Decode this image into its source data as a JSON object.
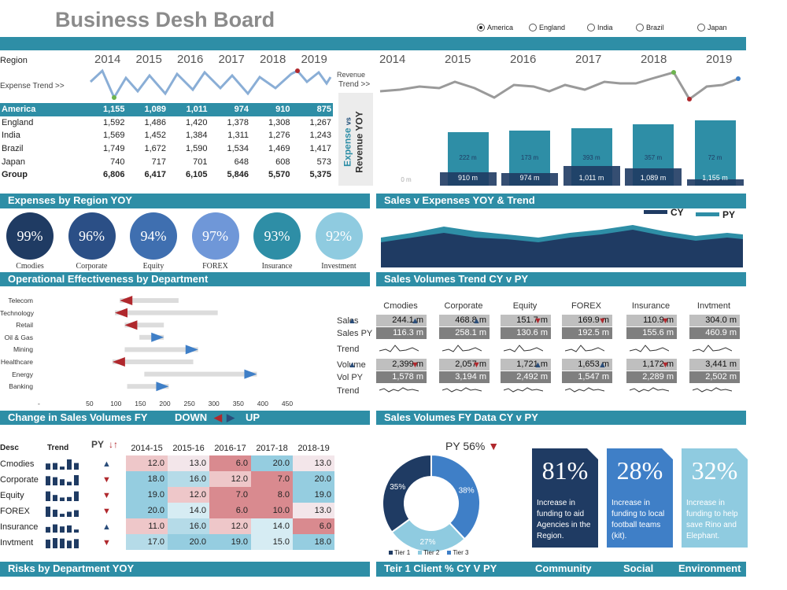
{
  "header": {
    "title": "Business Desh Board",
    "regions": [
      {
        "label": "America",
        "selected": true
      },
      {
        "label": "England",
        "selected": false
      },
      {
        "label": "India",
        "selected": false
      },
      {
        "label": "Brazil",
        "selected": false
      },
      {
        "label": "Japan",
        "selected": false
      }
    ]
  },
  "region_table": {
    "region_label": "Region",
    "trend_label": "Expense Trend >>",
    "years": [
      "2014",
      "2015",
      "2016",
      "2017",
      "2018",
      "2019"
    ],
    "rows": [
      {
        "name": "America",
        "values": [
          "1,155",
          "1,089",
          "1,011",
          "974",
          "910",
          "875"
        ]
      },
      {
        "name": "England",
        "values": [
          "1,592",
          "1,486",
          "1,420",
          "1,378",
          "1,308",
          "1,267"
        ]
      },
      {
        "name": "India",
        "values": [
          "1,569",
          "1,452",
          "1,384",
          "1,311",
          "1,276",
          "1,243"
        ]
      },
      {
        "name": "Brazil",
        "values": [
          "1,749",
          "1,672",
          "1,590",
          "1,534",
          "1,469",
          "1,417"
        ]
      },
      {
        "name": "Japan",
        "values": [
          "740",
          "717",
          "701",
          "648",
          "608",
          "573"
        ]
      },
      {
        "name": "Group",
        "values": [
          "6,806",
          "6,417",
          "6,105",
          "5,846",
          "5,570",
          "5,375"
        ]
      }
    ]
  },
  "revenue": {
    "label_line1": "Revenue",
    "label_line2": "Trend >>",
    "years": [
      "2014",
      "2015",
      "2016",
      "2017",
      "2018",
      "2019"
    ],
    "side_label_1": "Expense",
    "side_label_2": "vs",
    "side_label_3": "Revenue YOY",
    "bars": [
      {
        "top_label": "0 m",
        "bottom_label": "",
        "rev": 0,
        "exp": 0
      },
      {
        "top_label": "222 m",
        "bottom_label": "910 m",
        "rev": 68,
        "exp": 17
      },
      {
        "top_label": "173 m",
        "bottom_label": "974 m",
        "rev": 70,
        "exp": 16
      },
      {
        "top_label": "393 m",
        "bottom_label": "1,011 m",
        "rev": 73,
        "exp": 25
      },
      {
        "top_label": "357 m",
        "bottom_label": "1,089 m",
        "rev": 78,
        "exp": 22
      },
      {
        "top_label": "72 m",
        "bottom_label": "1,155 m",
        "rev": 83,
        "exp": 8
      }
    ]
  },
  "sections": {
    "expenses_region": "Expenses by Region YOY",
    "sales_expenses": "Sales v Expenses YOY & Trend",
    "operational": "Operational Effectiveness by Department",
    "sales_volumes_trend": "Sales Volumes Trend CY v PY",
    "change_sales": "Change in Sales Volumes FY",
    "down": "DOWN",
    "up": "UP",
    "sales_fy": "Sales Volumes FY Data CY v PY",
    "risks": "Risks by Department YOY",
    "tier1": "Teir 1 Client % CY V PY",
    "community": "Community",
    "social": "Social",
    "environment": "Environment"
  },
  "circles": [
    {
      "pct": "99%",
      "label": "Cmodies",
      "color": "#1f3b63"
    },
    {
      "pct": "96%",
      "label": "Corporate",
      "color": "#2b4f86"
    },
    {
      "pct": "94%",
      "label": "Equity",
      "color": "#3f6fb0"
    },
    {
      "pct": "97%",
      "label": "FOREX",
      "color": "#6f97d8"
    },
    {
      "pct": "93%",
      "label": "Insurance",
      "color": "#2e8ea6"
    },
    {
      "pct": "92%",
      "label": "Investment",
      "color": "#8fcbe0"
    }
  ],
  "legend": {
    "cy": "CY",
    "py": "PY"
  },
  "departments": {
    "items": [
      {
        "name": "Telecom",
        "start": 220,
        "end": 100,
        "dir": "left"
      },
      {
        "name": "Technology",
        "start": 300,
        "end": 90,
        "dir": "left"
      },
      {
        "name": "Retail",
        "start": 190,
        "end": 110,
        "dir": "left"
      },
      {
        "name": "Oil & Gas",
        "start": 140,
        "end": 190,
        "dir": "right"
      },
      {
        "name": "Mining",
        "start": 110,
        "end": 260,
        "dir": "right"
      },
      {
        "name": "Healthcare",
        "start": 250,
        "end": 85,
        "dir": "left"
      },
      {
        "name": "Energy",
        "start": 150,
        "end": 380,
        "dir": "right"
      },
      {
        "name": "Banking",
        "start": 115,
        "end": 200,
        "dir": "right"
      }
    ],
    "ticks": [
      "-",
      "50",
      "100",
      "150",
      "200",
      "250",
      "300",
      "350",
      "400",
      "450"
    ]
  },
  "volumes": {
    "columns": [
      "Cmodies",
      "Corporate",
      "Equity",
      "FOREX",
      "Insurance",
      "Invtment"
    ],
    "row_labels": [
      "Sales",
      "Sales PY",
      "Trend",
      "Volume",
      "Vol PY",
      "Trend"
    ],
    "sales": [
      "244.1 m",
      "468.8 m",
      "151.7 m",
      "169.9 m",
      "110.9 m",
      "304.0 m"
    ],
    "sales_py": [
      "116.3 m",
      "258.1 m",
      "130.6 m",
      "192.5 m",
      "155.6 m",
      "460.9 m"
    ],
    "sales_dir": [
      "up",
      "up",
      "up",
      "down",
      "down",
      "down"
    ],
    "volume": [
      "2,399 m",
      "2,057 m",
      "1,721 m",
      "1,653 m",
      "1,172 m",
      "3,441 m"
    ],
    "vol_py": [
      "1,578 m",
      "3,194 m",
      "2,492 m",
      "1,547 m",
      "2,289 m",
      "2,502 m"
    ],
    "vol_dir": [
      "up",
      "down",
      "down",
      "up",
      "up",
      "down"
    ]
  },
  "change_table": {
    "desc_label": "Desc",
    "trend_label": "Trend",
    "py_label": "PY",
    "sort_label": "↓↑",
    "years": [
      "2014-15",
      "2015-16",
      "2016-17",
      "2017-18",
      "2018-19"
    ],
    "rows": [
      {
        "name": "Cmodies",
        "dir": "up",
        "values": [
          "12.0",
          "13.0",
          "6.0",
          "20.0",
          "13.0"
        ]
      },
      {
        "name": "Corporate",
        "dir": "down",
        "values": [
          "18.0",
          "16.0",
          "12.0",
          "7.0",
          "20.0"
        ]
      },
      {
        "name": "Equity",
        "dir": "down",
        "values": [
          "19.0",
          "12.0",
          "7.0",
          "8.0",
          "19.0"
        ]
      },
      {
        "name": "FOREX",
        "dir": "down",
        "values": [
          "20.0",
          "14.0",
          "6.0",
          "10.0",
          "13.0"
        ]
      },
      {
        "name": "Insurance",
        "dir": "up",
        "values": [
          "11.0",
          "16.0",
          "12.0",
          "14.0",
          "6.0"
        ]
      },
      {
        "name": "Invtment",
        "dir": "down",
        "values": [
          "17.0",
          "20.0",
          "19.0",
          "15.0",
          "18.0"
        ]
      }
    ]
  },
  "donut": {
    "title": "PY 56%",
    "slices": [
      {
        "name": "Tier 1",
        "value": 35,
        "label": "35%",
        "color": "#1f3b63"
      },
      {
        "name": "Tier 2",
        "value": 27,
        "label": "27%",
        "color": "#8fcbe0"
      },
      {
        "name": "Tier 3",
        "value": 38,
        "label": "38%",
        "color": "#3f7fc7"
      }
    ]
  },
  "cards": [
    {
      "pct": "81%",
      "text": "Increase in funding to aid Agencies in the Region.",
      "color": "#1f3b63"
    },
    {
      "pct": "28%",
      "text": "Increase in funding to local football teams (kit).",
      "color": "#3f7fc7"
    },
    {
      "pct": "32%",
      "text": "Increase in funding to help save Rino and Elephant.",
      "color": "#8fcbe0"
    }
  ]
}
